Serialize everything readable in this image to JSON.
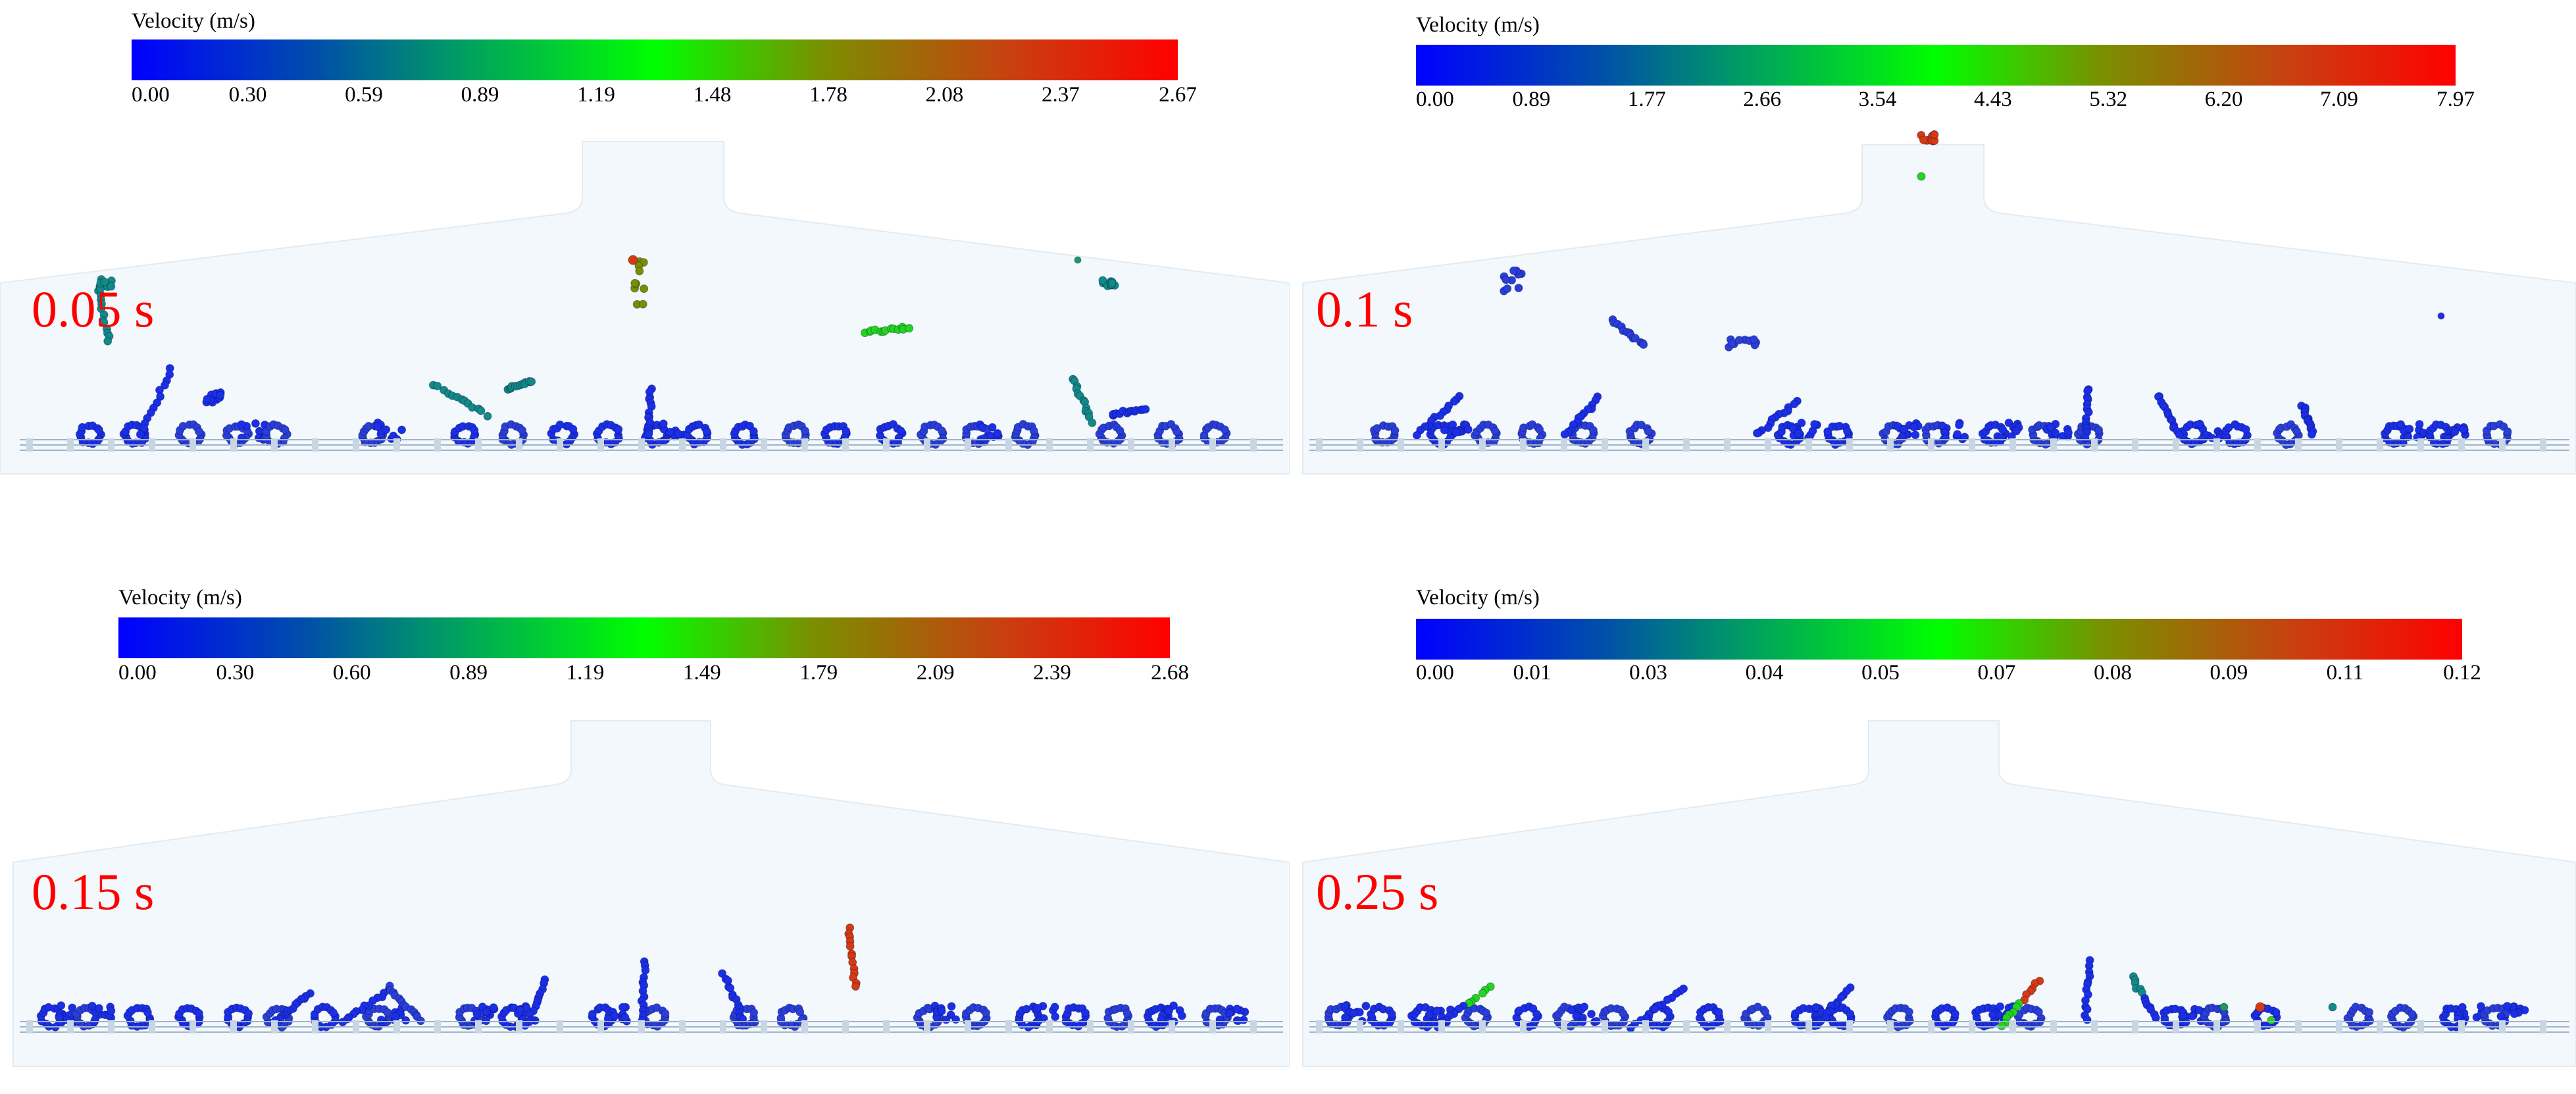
{
  "colors": {
    "background": "#ffffff",
    "chamber": "#f3f8fc",
    "time_label": "#ff0000",
    "colormap": [
      "#0000ff",
      "#0050a8",
      "#00a060",
      "#00ff00",
      "#7a8f00",
      "#c84010",
      "#ff0000"
    ]
  },
  "panels": [
    {
      "time": "0.05 s",
      "colorbar_title": "Velocity (m/s)",
      "colorbar_ticks": [
        "0.00",
        "0.30",
        "0.59",
        "0.89",
        "1.19",
        "1.48",
        "1.78",
        "2.08",
        "2.37",
        "2.67"
      ]
    },
    {
      "time": "0.1 s",
      "colorbar_title": "Velocity (m/s)",
      "colorbar_ticks": [
        "0.00",
        "0.89",
        "1.77",
        "2.66",
        "3.54",
        "4.43",
        "5.32",
        "6.20",
        "7.09",
        "7.97"
      ]
    },
    {
      "time": "0.15 s",
      "colorbar_title": "Velocity (m/s)",
      "colorbar_ticks": [
        "0.00",
        "0.30",
        "0.60",
        "0.89",
        "1.19",
        "1.49",
        "1.79",
        "2.09",
        "2.39",
        "2.68"
      ]
    },
    {
      "time": "0.25 s",
      "colorbar_title": "Velocity (m/s)",
      "colorbar_ticks": [
        "0.00",
        "0.01",
        "0.03",
        "0.04",
        "0.05",
        "0.07",
        "0.08",
        "0.09",
        "0.11",
        "0.12"
      ]
    }
  ]
}
